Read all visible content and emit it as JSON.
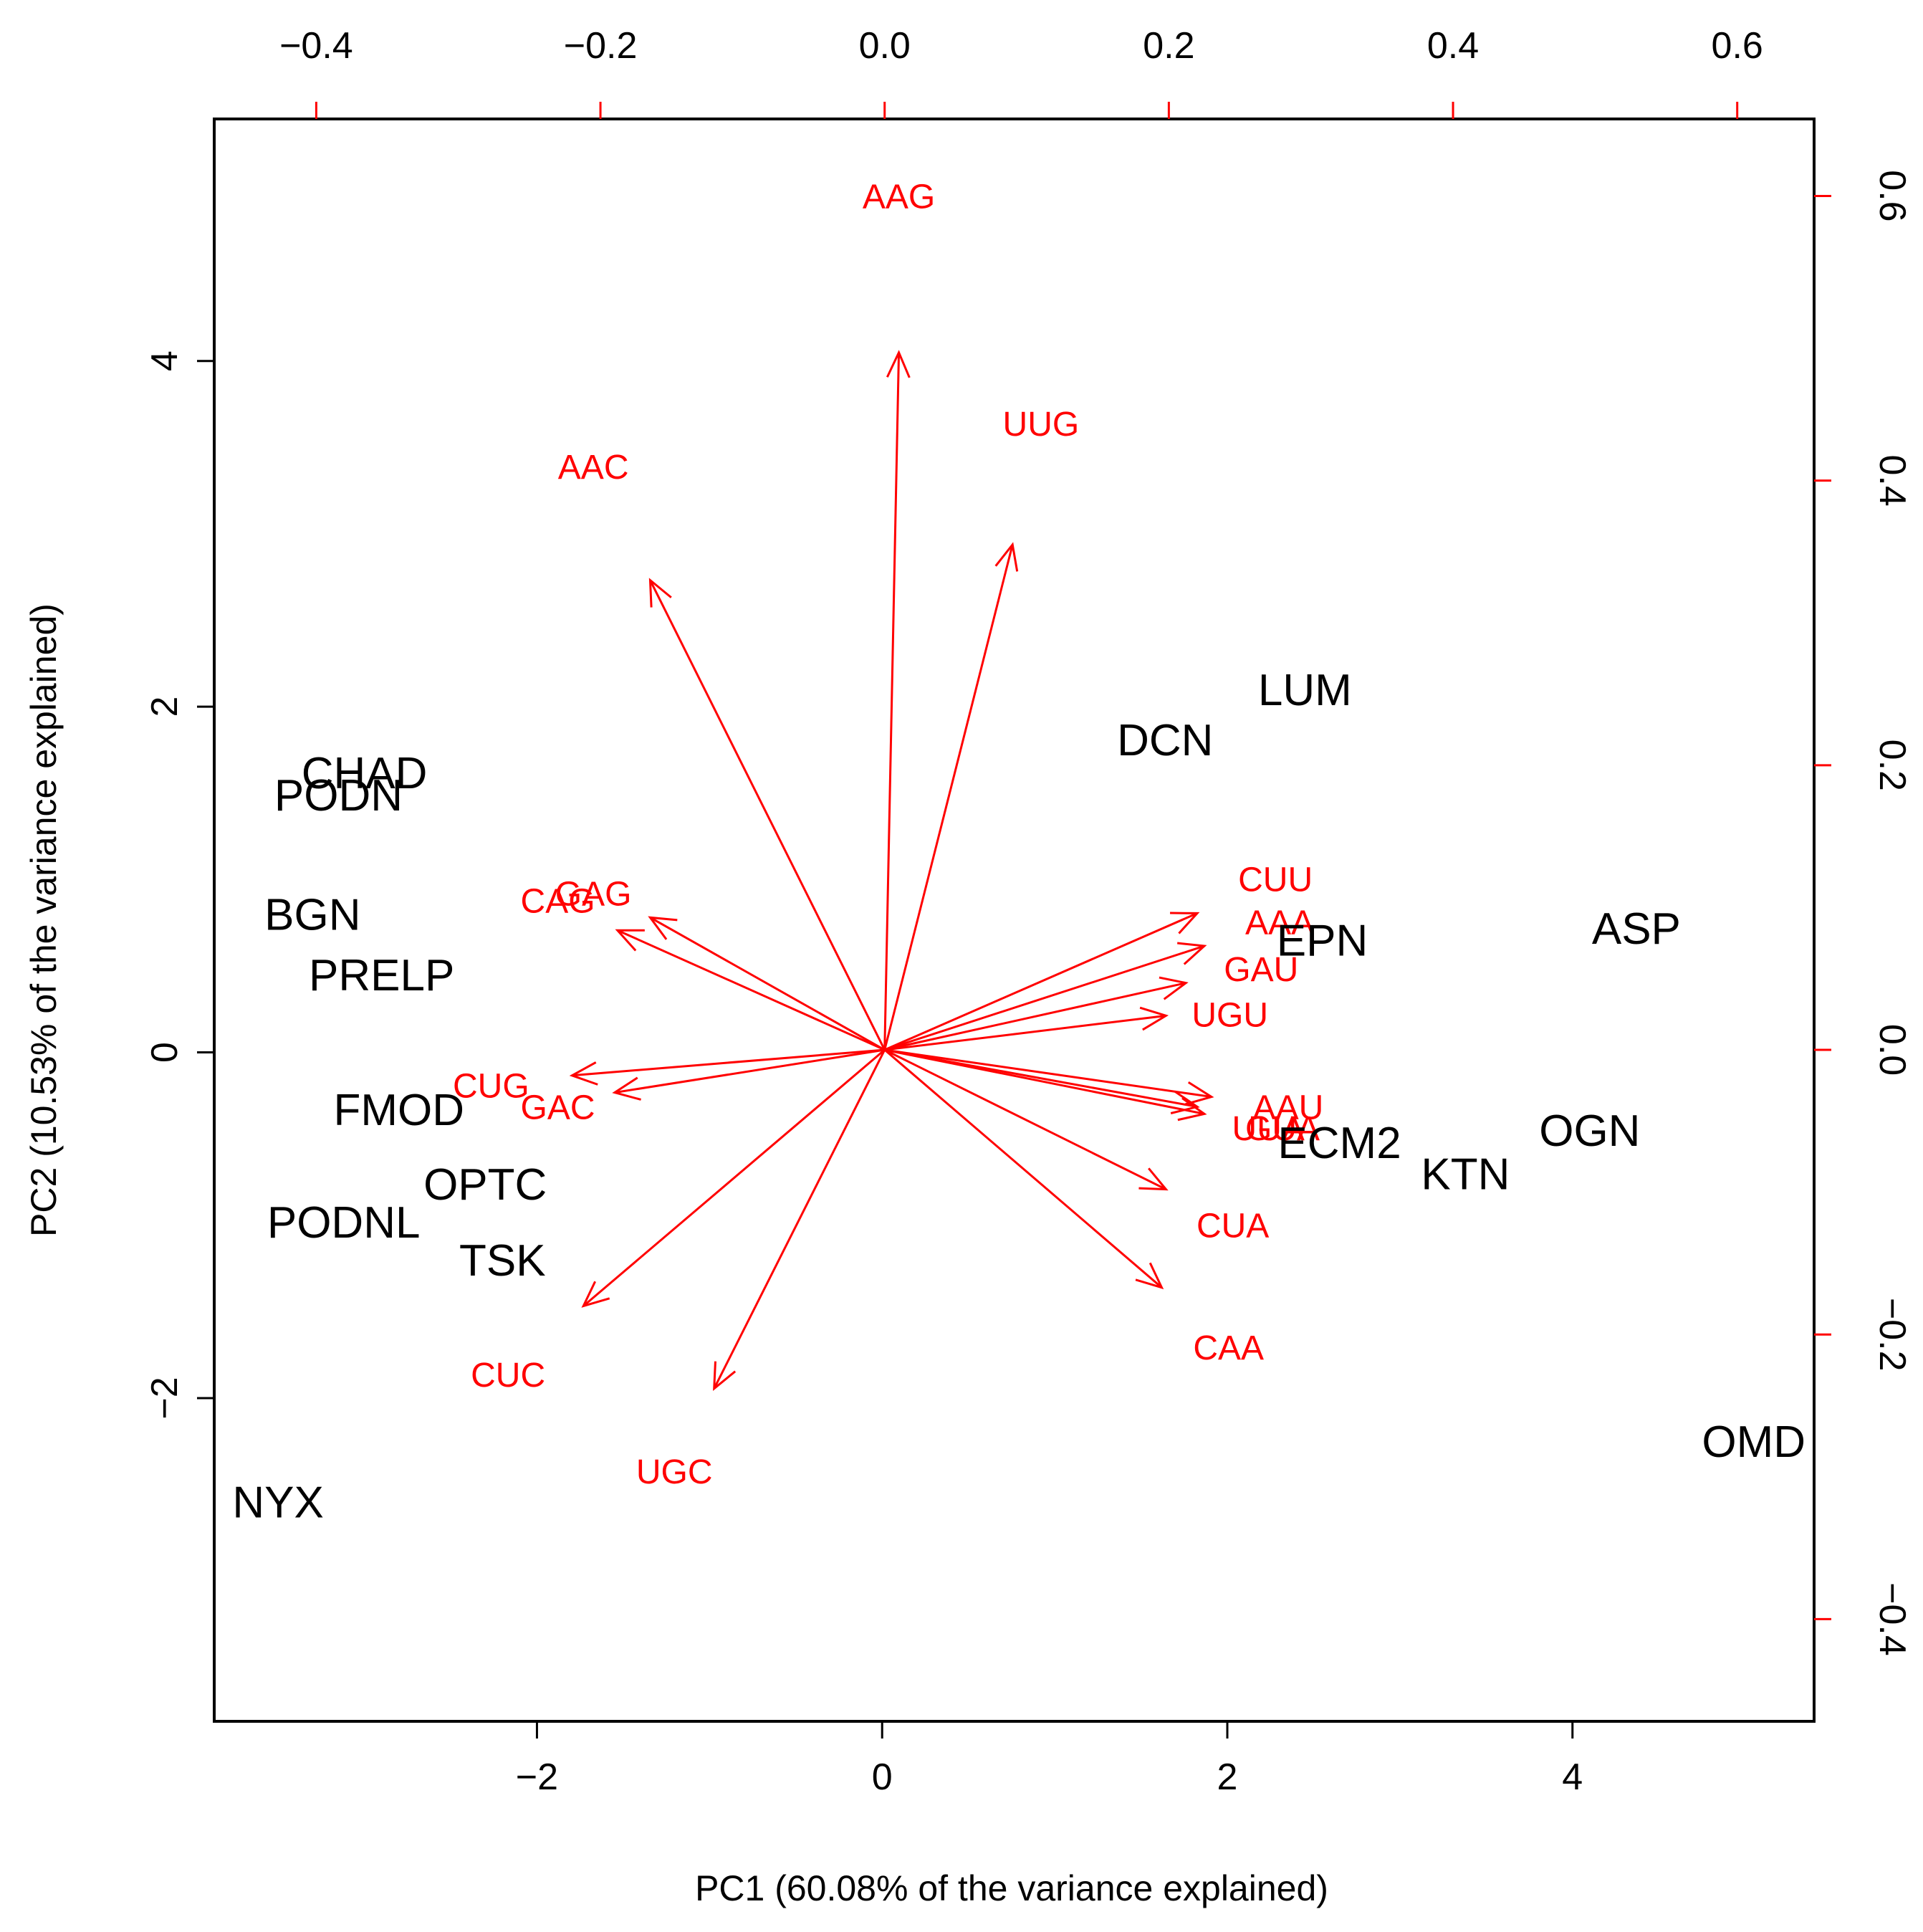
{
  "chart_data": {
    "type": "scatter",
    "subtype": "pca-biplot",
    "xlabel": "PC1 (60.08% of the variance explained)",
    "ylabel": "PC2 (10.53% of the variance explained)",
    "xlim": [
      -3.87,
      5.4
    ],
    "ylim": [
      -3.87,
      5.4
    ],
    "x_ticks": [
      -2,
      0,
      2,
      4
    ],
    "y_ticks": [
      -2,
      0,
      2,
      4
    ],
    "top_xlim": [
      -0.4718,
      0.6541
    ],
    "right_ylim": [
      -0.4718,
      0.6541
    ],
    "top_ticks": [
      -0.4,
      -0.2,
      0.0,
      0.2,
      0.4,
      0.6
    ],
    "right_ticks": [
      -0.4,
      -0.2,
      0.0,
      0.2,
      0.4,
      0.6
    ],
    "top_tick_labels": [
      "−0.4",
      "−0.2",
      "0.0",
      "0.2",
      "0.4",
      "0.6"
    ],
    "right_tick_labels": [
      "−0.4",
      "−0.2",
      "0.0",
      "0.2",
      "0.4",
      "0.6"
    ],
    "bottom_tick_labels": [
      "−2",
      "0",
      "2",
      "4"
    ],
    "left_tick_labels": [
      "−2",
      "0",
      "2",
      "4"
    ],
    "colors": {
      "observations": "#000000",
      "variables": "#ff0000",
      "frame": "#000000"
    },
    "observations": [
      {
        "label": "LUM",
        "x": 2.45,
        "y": 2.1
      },
      {
        "label": "DCN",
        "x": 1.64,
        "y": 1.81
      },
      {
        "label": "CHAD",
        "x": -3.0,
        "y": 1.62
      },
      {
        "label": "PODN",
        "x": -3.15,
        "y": 1.49
      },
      {
        "label": "BGN",
        "x": -3.3,
        "y": 0.8
      },
      {
        "label": "PRELP",
        "x": -2.9,
        "y": 0.45
      },
      {
        "label": "FMOD",
        "x": -2.8,
        "y": -0.33
      },
      {
        "label": "OPTC",
        "x": -2.3,
        "y": -0.76
      },
      {
        "label": "PODNL",
        "x": -3.12,
        "y": -0.98
      },
      {
        "label": "TSK",
        "x": -2.2,
        "y": -1.2
      },
      {
        "label": "NYX",
        "x": -3.5,
        "y": -2.6
      },
      {
        "label": "ASP",
        "x": 4.37,
        "y": 0.72
      },
      {
        "label": "EPN",
        "x": 2.55,
        "y": 0.65
      },
      {
        "label": "ECM2",
        "x": 2.65,
        "y": -0.52
      },
      {
        "label": "KTN",
        "x": 3.38,
        "y": -0.7
      },
      {
        "label": "OGN",
        "x": 4.1,
        "y": -0.45
      },
      {
        "label": "OMD",
        "x": 5.05,
        "y": -2.25
      }
    ],
    "loadings": [
      {
        "label": "AAG",
        "x": 0.01,
        "y": 0.49,
        "label_x": 0.01,
        "label_y": 0.6
      },
      {
        "label": "UUG",
        "x": 0.09,
        "y": 0.355,
        "label_x": 0.11,
        "label_y": 0.44
      },
      {
        "label": "AAC",
        "x": -0.165,
        "y": 0.33,
        "label_x": -0.205,
        "label_y": 0.41
      },
      {
        "label": "GAG",
        "x": -0.165,
        "y": 0.093,
        "label_x": -0.205,
        "label_y": 0.11
      },
      {
        "label": "CAG",
        "x": -0.188,
        "y": 0.084,
        "label_x": -0.23,
        "label_y": 0.105
      },
      {
        "label": "CUG",
        "x": -0.22,
        "y": -0.018,
        "label_x": -0.277,
        "label_y": -0.025
      },
      {
        "label": "GAC",
        "x": -0.19,
        "y": -0.03,
        "label_x": -0.23,
        "label_y": -0.04
      },
      {
        "label": "CUC",
        "x": -0.212,
        "y": -0.18,
        "label_x": -0.265,
        "label_y": -0.228
      },
      {
        "label": "UGC",
        "x": -0.12,
        "y": -0.238,
        "label_x": -0.148,
        "label_y": -0.296
      },
      {
        "label": "CUU",
        "x": 0.22,
        "y": 0.096,
        "label_x": 0.275,
        "label_y": 0.12
      },
      {
        "label": "AAA",
        "x": 0.225,
        "y": 0.073,
        "label_x": 0.278,
        "label_y": 0.09
      },
      {
        "label": "GAU",
        "x": 0.212,
        "y": 0.047,
        "label_x": 0.265,
        "label_y": 0.057
      },
      {
        "label": "UGU",
        "x": 0.198,
        "y": 0.024,
        "label_x": 0.243,
        "label_y": 0.025
      },
      {
        "label": "AAU",
        "x": 0.23,
        "y": -0.033,
        "label_x": 0.284,
        "label_y": -0.04
      },
      {
        "label": "UUA",
        "x": 0.225,
        "y": -0.045,
        "label_x": 0.27,
        "label_y": -0.055
      },
      {
        "label": "GUA",
        "x": 0.22,
        "y": -0.04,
        "label_x": 0.28,
        "label_y": -0.055
      },
      {
        "label": "CUA",
        "x": 0.198,
        "y": -0.098,
        "label_x": 0.245,
        "label_y": -0.123
      },
      {
        "label": "CAA",
        "x": 0.195,
        "y": -0.167,
        "label_x": 0.242,
        "label_y": -0.209
      }
    ]
  }
}
